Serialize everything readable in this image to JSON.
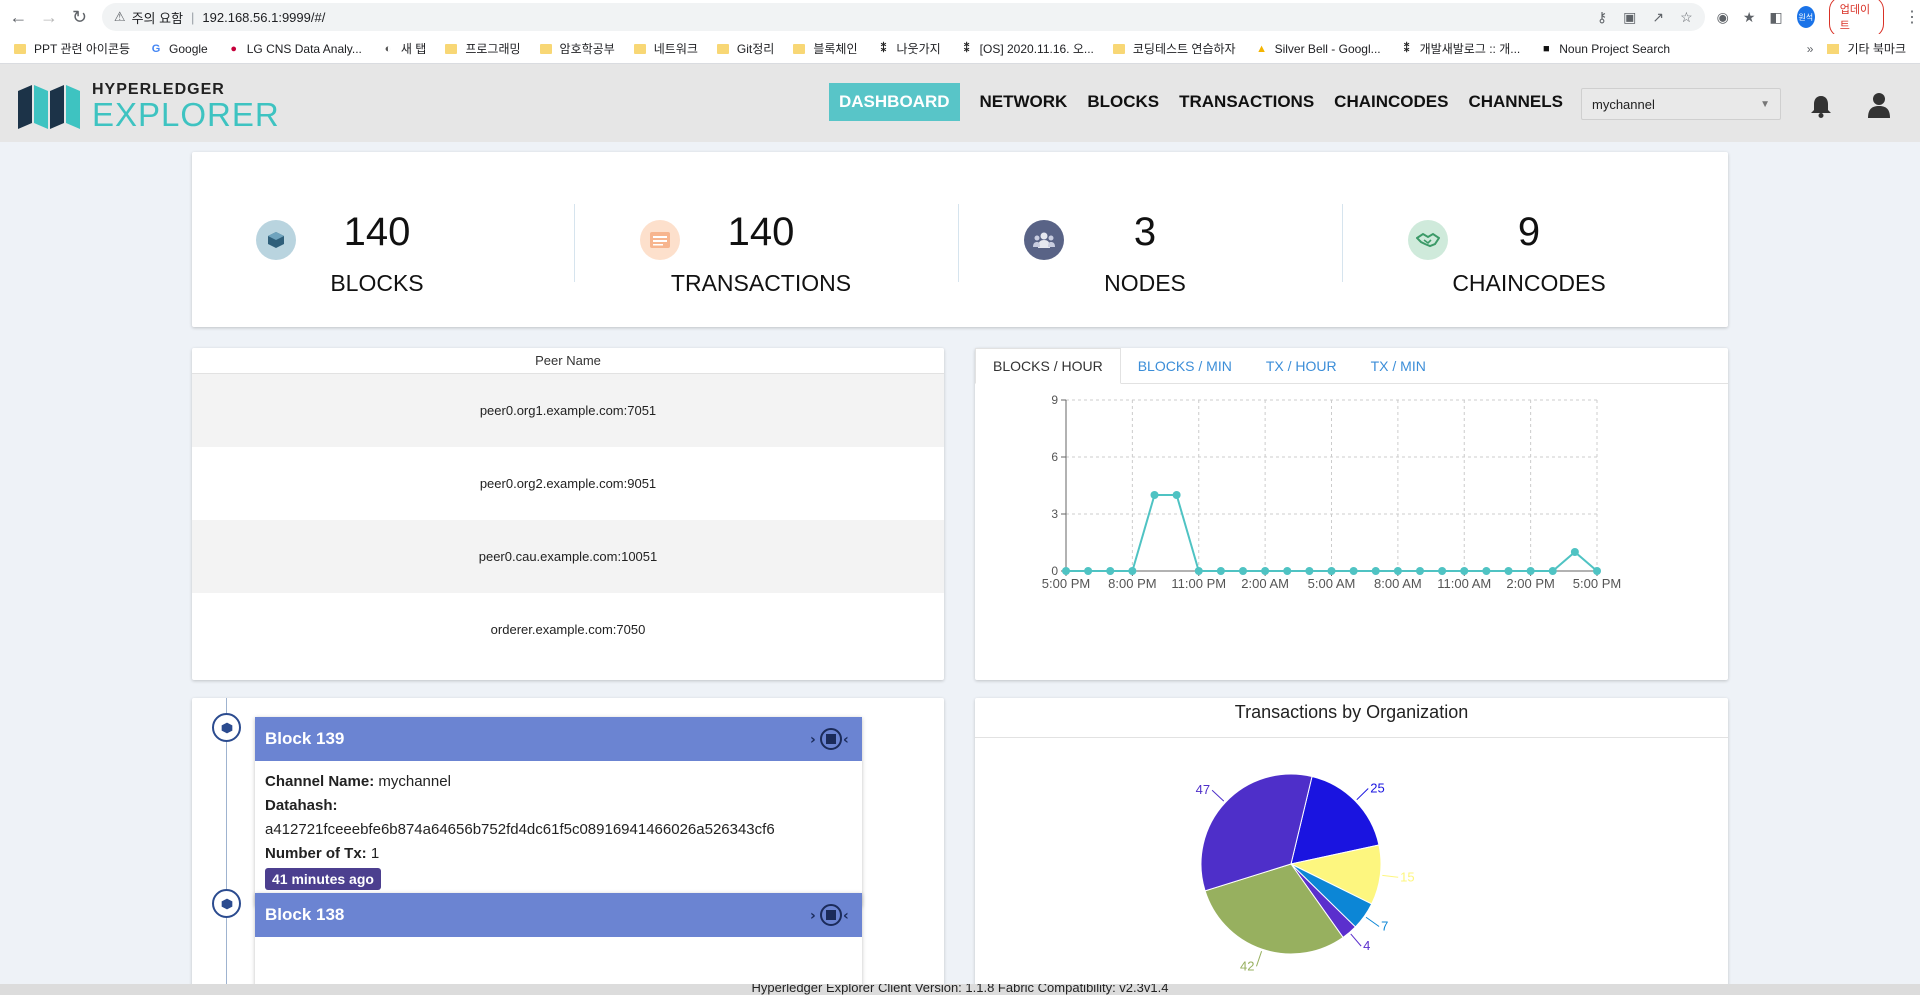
{
  "browser": {
    "security_label": "주의 요함",
    "url": "192.168.56.1:9999/#/",
    "profile_label": "원석",
    "update_label": "업데이트",
    "bookmarks": [
      {
        "label": "PPT 관련 아이콘등",
        "icon": "folder-icon"
      },
      {
        "label": "Google",
        "icon": "google-icon"
      },
      {
        "label": "LG CNS Data Analy...",
        "icon": "lg-icon"
      },
      {
        "label": "새 탭",
        "icon": "globe-icon"
      },
      {
        "label": "프로그래밍",
        "icon": "folder-icon"
      },
      {
        "label": "암호학공부",
        "icon": "folder-icon"
      },
      {
        "label": "네트워크",
        "icon": "folder-icon"
      },
      {
        "label": "Git정리",
        "icon": "folder-icon"
      },
      {
        "label": "블록체인",
        "icon": "folder-icon"
      },
      {
        "label": "나웃가지",
        "icon": "velog-icon"
      },
      {
        "label": "[OS] 2020.11.16. 오...",
        "icon": "velog-icon"
      },
      {
        "label": "코딩테스트 연습하자",
        "icon": "folder-icon"
      },
      {
        "label": "Silver Bell - Googl...",
        "icon": "drive-icon"
      },
      {
        "label": "개발새발로그 :: 개...",
        "icon": "velog-icon"
      },
      {
        "label": "Noun Project Search",
        "icon": "noun-icon"
      }
    ],
    "other_bookmarks": "기타 북마크"
  },
  "header": {
    "logo_top": "HYPERLEDGER",
    "logo_bottom": "EXPLORER",
    "nav": [
      "DASHBOARD",
      "NETWORK",
      "BLOCKS",
      "TRANSACTIONS",
      "CHAINCODES",
      "CHANNELS"
    ],
    "active_nav": "DASHBOARD",
    "channel": "mychannel"
  },
  "stats": [
    {
      "value": "140",
      "label": "BLOCKS",
      "icon": "cube-icon",
      "color": "#b9d4df",
      "icon_color": "#2f5f7a"
    },
    {
      "value": "140",
      "label": "TRANSACTIONS",
      "icon": "list-icon",
      "color": "#fde0cc",
      "icon_color": "#f49a6b"
    },
    {
      "value": "3",
      "label": "NODES",
      "icon": "users-icon",
      "color": "#596386",
      "icon_color": "#e6e8f0"
    },
    {
      "value": "9",
      "label": "CHAINCODES",
      "icon": "handshake-icon",
      "color": "#cfeadb",
      "icon_color": "#3c9a68"
    }
  ],
  "peers": {
    "header": "Peer Name",
    "rows": [
      "peer0.org1.example.com:7051",
      "peer0.org2.example.com:9051",
      "peer0.cau.example.com:10051",
      "orderer.example.com:7050"
    ]
  },
  "chart_tabs": [
    "BLOCKS / HOUR",
    "BLOCKS / MIN",
    "TX / HOUR",
    "TX / MIN"
  ],
  "active_chart_tab": "BLOCKS / HOUR",
  "blocks": [
    {
      "title": "Block 139",
      "channel_label": "Channel Name:",
      "channel": "mychannel",
      "datahash_label": "Datahash:",
      "datahash": "a412721fceeebfe6b874a64656b752fd4dc61f5c08916941466026a526343cf6",
      "tx_label": "Number of Tx:",
      "tx": "1",
      "age": "41 minutes ago"
    },
    {
      "title": "Block 138"
    }
  ],
  "org_chart_title": "Transactions by Organization",
  "footer": "Hyperledger Explorer Client Version: 1.1.8    Fabric Compatibility: v2.3v1.4",
  "chart_data": [
    {
      "type": "line",
      "title": "",
      "xlabel": "",
      "ylabel": "",
      "x": [
        "5:00 PM",
        "6:00 PM",
        "7:00 PM",
        "8:00 PM",
        "9:00 PM",
        "10:00 PM",
        "11:00 PM",
        "12:00 AM",
        "1:00 AM",
        "2:00 AM",
        "3:00 AM",
        "4:00 AM",
        "5:00 AM",
        "6:00 AM",
        "7:00 AM",
        "8:00 AM",
        "9:00 AM",
        "10:00 AM",
        "11:00 AM",
        "12:00 PM",
        "1:00 PM",
        "2:00 PM",
        "3:00 PM",
        "4:00 PM",
        "5:00 PM"
      ],
      "x_tick_labels": [
        "5:00 PM",
        "8:00 PM",
        "11:00 PM",
        "2:00 AM",
        "5:00 AM",
        "8:00 AM",
        "11:00 AM",
        "2:00 PM",
        "5:00 PM"
      ],
      "series": [
        {
          "values": [
            0,
            0,
            0,
            0,
            4,
            4,
            0,
            0,
            0,
            0,
            0,
            0,
            0,
            0,
            0,
            0,
            0,
            0,
            0,
            0,
            0,
            0,
            0,
            1,
            0
          ],
          "color": "#4fc3c3"
        }
      ],
      "y_ticks": [
        0,
        3,
        6,
        9
      ],
      "ylim": [
        0,
        9
      ],
      "grid": true
    },
    {
      "type": "pie",
      "title": "Transactions by Organization",
      "series": [
        {
          "values": [
            25,
            15,
            7,
            4,
            42,
            47
          ],
          "colors": [
            "#1a14e0",
            "#fdf67f",
            "#0c86d6",
            "#5b2fcd",
            "#97b05f",
            "#4e2fc9"
          ]
        }
      ]
    }
  ]
}
